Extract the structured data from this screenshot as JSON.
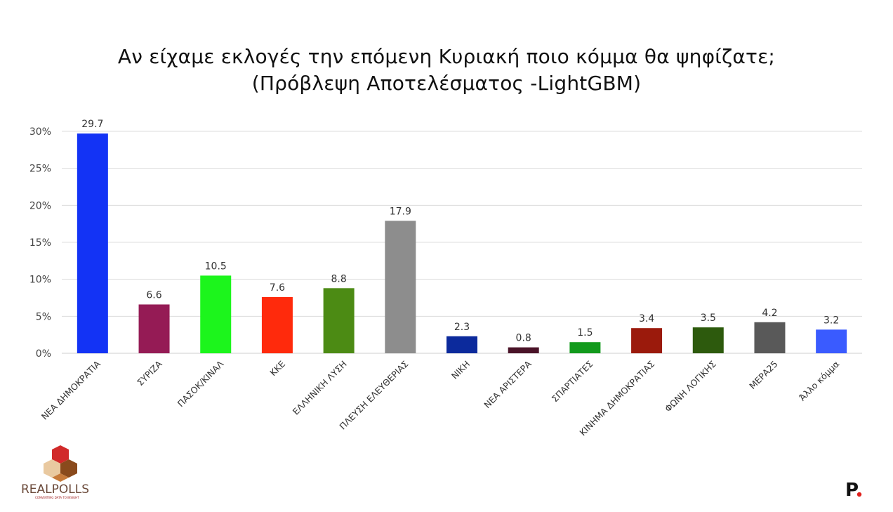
{
  "chart_data": {
    "type": "bar",
    "title": "Αν είχαμε εκλογές την επόμενη Κυριακή ποιο κόμμα θα ψηφίζατε;",
    "subtitle": "(Πρόβλεψη Αποτελέσματος -LightGBM)",
    "categories": [
      "ΝΕΑ ΔΗΜΟΚΡΑΤΙΑ",
      "ΣΥΡΙΖΑ",
      "ΠΑΣΟΚ/ΚΙΝΑΛ",
      "ΚΚΕ",
      "ΕΛΛΗΝΙΚΗ ΛΥΣΗ",
      "ΠΛΕΥΣΗ ΕΛΕΥΘΕΡΙΑΣ",
      "ΝΙΚΗ",
      "ΝΕΑ ΑΡΙΣΤΕΡΑ",
      "ΣΠΑΡΤΙΑΤΕΣ",
      "ΚΙΝΗΜΑ ΔΗΜΟΚΡΑΤΙΑΣ",
      "ΦΩΝΗ ΛΟΓΙΚΗΣ",
      "ΜΕΡΑ25",
      "Άλλο κόμμα"
    ],
    "values": [
      29.7,
      6.6,
      10.5,
      7.6,
      8.8,
      17.9,
      2.3,
      0.8,
      1.5,
      3.4,
      3.5,
      4.2,
      3.2
    ],
    "value_labels": [
      "29.7",
      "6.6",
      "10.5",
      "7.6",
      "8.8",
      "17.9",
      "2.3",
      "0.8",
      "1.5",
      "3.4",
      "3.5",
      "4.2",
      "3.2"
    ],
    "colors": [
      "#1333f5",
      "#951b55",
      "#1cf51c",
      "#ff2a0c",
      "#4c8b14",
      "#8d8d8d",
      "#0c2a9c",
      "#4a1328",
      "#129a1c",
      "#9b1a0c",
      "#2d5a0d",
      "#595959",
      "#3a5bff"
    ],
    "ylim": [
      0,
      30
    ],
    "yticks": [
      0,
      5,
      10,
      15,
      20,
      25,
      30
    ],
    "ytick_labels": [
      "0%",
      "5%",
      "10%",
      "15%",
      "20%",
      "25%",
      "30%"
    ],
    "grid": true,
    "xlabel": "",
    "ylabel": ""
  },
  "branding": {
    "left_logo_text": "REALPOLLS",
    "left_logo_tagline": "CONVERTING DATA TO INSIGHT",
    "right_logo_text": "P"
  }
}
